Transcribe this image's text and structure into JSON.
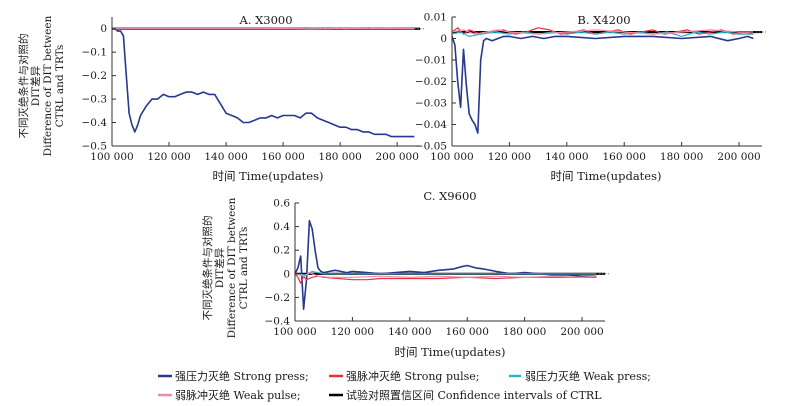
{
  "legend": [
    {
      "key": "strong_press",
      "label": "强压力灭绝 Strong press;",
      "color": "#26388f"
    },
    {
      "key": "strong_pulse",
      "label": "强脉冲灭绝 Strong pulse;",
      "color": "#e8303d"
    },
    {
      "key": "weak_press",
      "label": "弱压力灭绝 Weak press;",
      "color": "#2bb3c9"
    },
    {
      "key": "weak_pulse",
      "label": "弱脉冲灭绝 Weak pulse;",
      "color": "#f28aa6"
    },
    {
      "key": "ci",
      "label": "试验对照置信区间 Confidence intervals of CTRL",
      "color": "#000000"
    }
  ],
  "y_axis_label": [
    "不同灭绝条件与对照的",
    "DIT差异",
    "Difference of DIT between",
    "CTRL and TRTs"
  ],
  "x_axis_label": "时间 Time(updates)",
  "chart_data": [
    {
      "id": "A",
      "type": "line",
      "title": "A. X3000",
      "xlabel": "时间 Time(updates)",
      "xlim": [
        100000,
        208000
      ],
      "ylim": [
        -0.5,
        0.05
      ],
      "xticks": [
        100000,
        120000,
        140000,
        160000,
        180000,
        200000
      ],
      "xtick_labels": [
        "100 000",
        "120 000",
        "140 000",
        "160 000",
        "180 000",
        "200 000"
      ],
      "yticks": [
        0,
        -0.1,
        -0.2,
        -0.3,
        -0.4,
        -0.5
      ],
      "ytick_labels": [
        "0",
        "−0.1",
        "−0.2",
        "−0.3",
        "−0.4",
        "−0.5"
      ],
      "ci_band": [
        -0.002,
        0.002
      ],
      "series": [
        {
          "name": "强压力灭绝 Strong press",
          "key": "strong_press",
          "x": [
            100000,
            101000,
            102000,
            103000,
            104000,
            105000,
            106000,
            107000,
            108000,
            109000,
            110000,
            112000,
            114000,
            116000,
            118000,
            120000,
            122000,
            124000,
            126000,
            128000,
            130000,
            132000,
            134000,
            136000,
            138000,
            140000,
            142000,
            144000,
            146000,
            148000,
            150000,
            152000,
            154000,
            156000,
            158000,
            160000,
            162000,
            164000,
            166000,
            168000,
            170000,
            172000,
            174000,
            176000,
            178000,
            180000,
            182000,
            184000,
            186000,
            188000,
            190000,
            192000,
            194000,
            196000,
            198000,
            200000,
            202000,
            204000,
            206000
          ],
          "values": [
            0,
            0,
            -0.01,
            -0.01,
            -0.03,
            -0.2,
            -0.36,
            -0.41,
            -0.44,
            -0.41,
            -0.37,
            -0.33,
            -0.3,
            -0.3,
            -0.28,
            -0.29,
            -0.29,
            -0.28,
            -0.27,
            -0.27,
            -0.28,
            -0.27,
            -0.28,
            -0.28,
            -0.32,
            -0.36,
            -0.37,
            -0.38,
            -0.4,
            -0.4,
            -0.39,
            -0.38,
            -0.38,
            -0.37,
            -0.38,
            -0.37,
            -0.37,
            -0.37,
            -0.38,
            -0.36,
            -0.36,
            -0.38,
            -0.39,
            -0.4,
            -0.41,
            -0.42,
            -0.42,
            -0.43,
            -0.43,
            -0.44,
            -0.44,
            -0.45,
            -0.45,
            -0.45,
            -0.46,
            -0.46,
            -0.46,
            -0.46,
            -0.46
          ]
        },
        {
          "name": "强脉冲灭绝 Strong pulse",
          "key": "strong_pulse",
          "x": [
            100000,
            110000,
            120000,
            130000,
            140000,
            150000,
            160000,
            166000,
            168000,
            170000,
            172000,
            174000,
            176000,
            178000,
            180000,
            182000,
            184000,
            186000,
            188000,
            190000,
            192000,
            194000,
            196000,
            198000,
            200000,
            206000
          ],
          "values": [
            0,
            0,
            0,
            0,
            0,
            0,
            0,
            0.002,
            -0.002,
            0.003,
            0.001,
            0.004,
            -0.001,
            0.002,
            0.004,
            -0.002,
            0.002,
            0.003,
            0,
            0.004,
            0.002,
            0,
            0.003,
            0.001,
            0,
            0
          ]
        },
        {
          "name": "弱压力灭绝 Weak press",
          "key": "weak_press",
          "x": [
            100000,
            206000
          ],
          "values": [
            0,
            0
          ]
        },
        {
          "name": "弱脉冲灭绝 Weak pulse",
          "key": "weak_pulse",
          "x": [
            100000,
            150000,
            160000,
            170000,
            180000,
            190000,
            200000,
            206000
          ],
          "values": [
            0,
            0,
            0.001,
            -0.001,
            0.001,
            0,
            0.001,
            0
          ]
        }
      ]
    },
    {
      "id": "B",
      "type": "line",
      "title": "B. X4200",
      "xlabel": "时间 Time(updates)",
      "xlim": [
        100000,
        208000
      ],
      "ylim": [
        -0.05,
        0.01
      ],
      "xticks": [
        100000,
        120000,
        140000,
        160000,
        180000,
        200000
      ],
      "xtick_labels": [
        "100 000",
        "120 000",
        "140 000",
        "160 000",
        "180 000",
        "200 000"
      ],
      "yticks": [
        0.01,
        0,
        -0.01,
        -0.02,
        -0.03,
        -0.04,
        -0.05
      ],
      "ytick_labels": [
        "0.01",
        "0",
        "−0.01",
        "−0.02",
        "−0.03",
        "−0.04",
        "−0.05"
      ],
      "ci_band": [
        0.002,
        0.004
      ],
      "series": [
        {
          "name": "强压力灭绝 Strong press",
          "key": "strong_press",
          "x": [
            100000,
            101000,
            102000,
            103000,
            104000,
            105000,
            106000,
            107000,
            108000,
            109000,
            110000,
            111000,
            112000,
            114000,
            116000,
            118000,
            120000,
            124000,
            128000,
            132000,
            136000,
            140000,
            150000,
            160000,
            170000,
            180000,
            190000,
            196000,
            200000,
            203000,
            205000
          ],
          "values": [
            0.001,
            -0.003,
            -0.02,
            -0.032,
            -0.005,
            -0.022,
            -0.035,
            -0.038,
            -0.04,
            -0.044,
            -0.01,
            -0.001,
            0,
            -0.001,
            0,
            0.001,
            0.001,
            0,
            0.001,
            0,
            0.001,
            0.001,
            0,
            0.001,
            0.001,
            0,
            0.001,
            -0.001,
            0,
            0.001,
            0
          ]
        },
        {
          "name": "强脉冲灭绝 Strong pulse",
          "key": "strong_pulse",
          "x": [
            100000,
            102000,
            104000,
            106000,
            108000,
            110000,
            114000,
            118000,
            122000,
            126000,
            130000,
            134000,
            138000,
            142000,
            146000,
            150000,
            154000,
            158000,
            162000,
            166000,
            170000,
            174000,
            178000,
            182000,
            186000,
            190000,
            194000,
            198000,
            202000,
            205000
          ],
          "values": [
            0.003,
            0.005,
            0.002,
            0.004,
            0.003,
            0.002,
            0.003,
            0.004,
            0.002,
            0.003,
            0.005,
            0.004,
            0.002,
            0.003,
            0.004,
            0.002,
            0.003,
            0.004,
            0.002,
            0.003,
            0.004,
            0.002,
            0.003,
            0.004,
            0.002,
            0.003,
            0.004,
            0.002,
            0.003,
            0.002
          ]
        },
        {
          "name": "弱压力灭绝 Weak press",
          "key": "weak_press",
          "x": [
            100000,
            103000,
            106000,
            110000,
            115000,
            120000,
            125000,
            130000,
            135000,
            140000,
            145000,
            150000,
            155000,
            160000,
            165000,
            170000,
            175000,
            180000,
            185000,
            190000,
            195000,
            200000,
            205000
          ],
          "values": [
            0.002,
            0.003,
            0.001,
            0.002,
            0.003,
            0.002,
            0.003,
            0.002,
            0.003,
            0.002,
            0.003,
            0.002,
            0.003,
            0.002,
            0.003,
            0.002,
            0.003,
            0.001,
            0.003,
            0.002,
            0.003,
            0.002,
            0.002
          ]
        },
        {
          "name": "弱脉冲灭绝 Weak pulse",
          "key": "weak_pulse",
          "x": [
            100000,
            104000,
            108000,
            112000,
            116000,
            120000,
            130000,
            140000,
            150000,
            160000,
            170000,
            180000,
            190000,
            200000,
            205000
          ],
          "values": [
            0.003,
            0.004,
            0.002,
            0.003,
            0.004,
            0.003,
            0.002,
            0.003,
            0.004,
            0.003,
            0.002,
            0.003,
            0.004,
            0.003,
            0.003
          ]
        }
      ]
    },
    {
      "id": "C",
      "type": "line",
      "title": "C. X9600",
      "xlabel": "时间 Time(updates)",
      "xlim": [
        100000,
        208000
      ],
      "ylim": [
        -0.4,
        0.6
      ],
      "xticks": [
        100000,
        120000,
        140000,
        160000,
        180000,
        200000
      ],
      "xtick_labels": [
        "100 000",
        "120 000",
        "140 000",
        "160 000",
        "180 000",
        "200 000"
      ],
      "yticks": [
        0.6,
        0.4,
        0.2,
        0,
        -0.2,
        -0.4
      ],
      "ytick_labels": [
        "0.6",
        "0.4",
        "0.2",
        "0",
        "−0.2",
        "−0.4"
      ],
      "ci_band": [
        -0.005,
        0.005
      ],
      "series": [
        {
          "name": "强压力灭绝 Strong press",
          "key": "strong_press",
          "x": [
            100000,
            101000,
            102000,
            103000,
            104000,
            105000,
            106000,
            107000,
            108000,
            109000,
            110000,
            112000,
            114000,
            116000,
            118000,
            120000,
            125000,
            130000,
            135000,
            140000,
            145000,
            150000,
            155000,
            158000,
            160000,
            163000,
            166000,
            170000,
            175000,
            180000,
            185000,
            190000,
            195000,
            200000,
            205000
          ],
          "values": [
            0,
            0.05,
            0.15,
            -0.3,
            -0.05,
            0.45,
            0.38,
            0.2,
            0.05,
            0.02,
            0.01,
            0.02,
            0.03,
            0.02,
            0.01,
            0.02,
            0.01,
            0.0,
            0.01,
            0.02,
            0.01,
            0.03,
            0.04,
            0.06,
            0.07,
            0.05,
            0.04,
            0.02,
            0.0,
            0.01,
            0.0,
            -0.01,
            -0.01,
            -0.02,
            -0.02
          ]
        },
        {
          "name": "强脉冲灭绝 Strong pulse",
          "key": "strong_pulse",
          "x": [
            100000,
            101000,
            102000,
            103000,
            104000,
            105000,
            106000,
            108000,
            110000,
            115000,
            120000,
            125000,
            130000,
            140000,
            150000,
            160000,
            170000,
            180000,
            190000,
            200000,
            205000
          ],
          "values": [
            0,
            -0.03,
            -0.08,
            -0.02,
            -0.05,
            -0.04,
            -0.03,
            -0.02,
            -0.03,
            -0.04,
            -0.05,
            -0.05,
            -0.04,
            -0.04,
            -0.04,
            -0.03,
            -0.04,
            -0.03,
            -0.03,
            -0.03,
            -0.03
          ]
        },
        {
          "name": "弱压力灭绝 Weak press",
          "key": "weak_press",
          "x": [
            100000,
            104000,
            106000,
            110000,
            130000,
            160000,
            205000
          ],
          "values": [
            0,
            -0.01,
            0.02,
            0,
            0,
            0,
            0
          ]
        },
        {
          "name": "弱脉冲灭绝 Weak pulse",
          "key": "weak_pulse",
          "x": [
            100000,
            103000,
            105000,
            108000,
            112000,
            120000,
            130000,
            140000,
            150000,
            160000,
            170000,
            180000,
            190000,
            200000,
            205000
          ],
          "values": [
            0,
            -0.02,
            0.01,
            -0.02,
            -0.03,
            -0.03,
            -0.02,
            -0.03,
            -0.02,
            -0.03,
            -0.02,
            -0.03,
            -0.02,
            -0.03,
            -0.02
          ]
        }
      ]
    }
  ]
}
